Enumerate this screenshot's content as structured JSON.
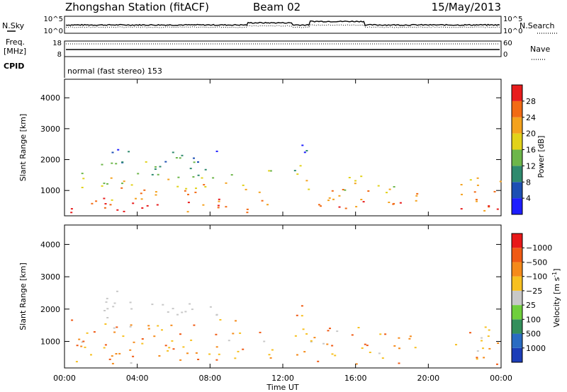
{
  "header": {
    "station": "Zhongshan Station (fitACF)",
    "beam": "Beam 02",
    "date": "15/May/2013"
  },
  "strip1": {
    "left_label": "N.Sky",
    "right_label": "N.Search",
    "left_ticks": [
      "10^5",
      "10^0"
    ],
    "right_ticks": [
      "10^5",
      "10^0"
    ]
  },
  "strip2": {
    "left_label_1": "Freq.",
    "left_label_2": "[MHz]",
    "right_label": "Nave",
    "left_ticks": [
      "18",
      "8"
    ],
    "right_ticks": [
      "60",
      "0"
    ]
  },
  "cpid": {
    "label": "CPID",
    "text": "normal (fast stereo) 153"
  },
  "chart_data": [
    {
      "type": "heatmap",
      "name": "power",
      "ylabel": "Slant Range [km]",
      "xlabel": "",
      "x_ticks": [
        "00:00",
        "04:00",
        "08:00",
        "12:00",
        "16:00",
        "20:00",
        "00:00"
      ],
      "x_range_hours": [
        0,
        24
      ],
      "y_ticks": [
        1000,
        2000,
        3000,
        4000
      ],
      "ylim": [
        180,
        4600
      ],
      "colorbar": {
        "label": "Power [dB]",
        "ticks": [
          "4",
          "8",
          "12",
          "16",
          "20",
          "24",
          "28"
        ],
        "colors": [
          "#1d1dff",
          "#1d4fb4",
          "#2f8a6e",
          "#6db64a",
          "#e2d21a",
          "#f4a21e",
          "#f26a14",
          "#e81c1c"
        ]
      }
    },
    {
      "type": "heatmap",
      "name": "velocity",
      "ylabel": "Slant Range [km]",
      "xlabel": "Time UT",
      "x_ticks": [
        "00:00",
        "04:00",
        "08:00",
        "12:00",
        "16:00",
        "20:00",
        "00:00"
      ],
      "x_range_hours": [
        0,
        24
      ],
      "y_ticks": [
        1000,
        2000,
        3000,
        4000
      ],
      "ylim": [
        180,
        4600
      ],
      "colorbar": {
        "label": "Velocity [m s",
        "label_sup": "-1",
        "label_close": "]",
        "ticks": [
          "1000",
          "500",
          "100",
          "25",
          "−25",
          "−100",
          "−500",
          "−1000"
        ],
        "colors": [
          "#1c3db8",
          "#2a6cc2",
          "#338f5c",
          "#6fcf3c",
          "#c8c8c8",
          "#f7c020",
          "#f58a1a",
          "#f05a14",
          "#e81818"
        ]
      }
    }
  ]
}
